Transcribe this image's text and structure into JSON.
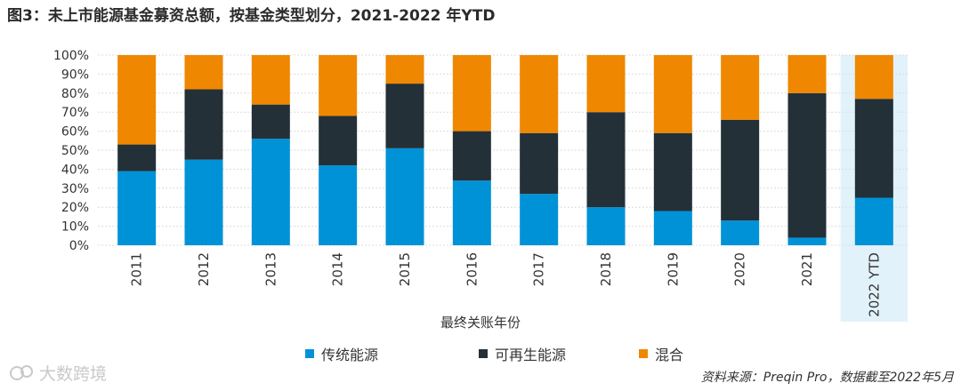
{
  "title": "图3：未上市能源基金募资总额，按基金类型划分，2021-2022 年YTD",
  "source": "资料来源：Preqin Pro，数据截至2022年5月",
  "watermark": "大数跨境",
  "colors": {
    "traditional": "#0092d6",
    "renewable": "#233038",
    "mixed": "#f08700",
    "highlight": "#e2f2fa",
    "grid": "#dcdcdc"
  },
  "legend": [
    {
      "label": "传统能源",
      "color_key": "traditional"
    },
    {
      "label": "可再生能源",
      "color_key": "renewable"
    },
    {
      "label": "混合",
      "color_key": "mixed"
    }
  ],
  "chart_data": {
    "type": "bar",
    "stacked": true,
    "xlabel": "最终关账年份",
    "ylabel": "",
    "ylim": [
      0,
      100
    ],
    "yticks": [
      "0%",
      "10%",
      "20%",
      "30%",
      "40%",
      "50%",
      "60%",
      "70%",
      "80%",
      "90%",
      "100%"
    ],
    "categories": [
      "2011",
      "2012",
      "2013",
      "2014",
      "2015",
      "2016",
      "2017",
      "2018",
      "2019",
      "2020",
      "2021",
      "2022 YTD"
    ],
    "highlight_category": "2022 YTD",
    "series": [
      {
        "name": "传统能源",
        "color_key": "traditional",
        "values": [
          39,
          45,
          56,
          42,
          51,
          34,
          27,
          20,
          18,
          13,
          4,
          25
        ]
      },
      {
        "name": "可再生能源",
        "color_key": "renewable",
        "values": [
          14,
          37,
          18,
          26,
          34,
          26,
          32,
          50,
          41,
          53,
          76,
          52
        ]
      },
      {
        "name": "混合",
        "color_key": "mixed",
        "values": [
          47,
          18,
          26,
          32,
          15,
          40,
          41,
          30,
          41,
          34,
          20,
          23
        ]
      }
    ]
  }
}
